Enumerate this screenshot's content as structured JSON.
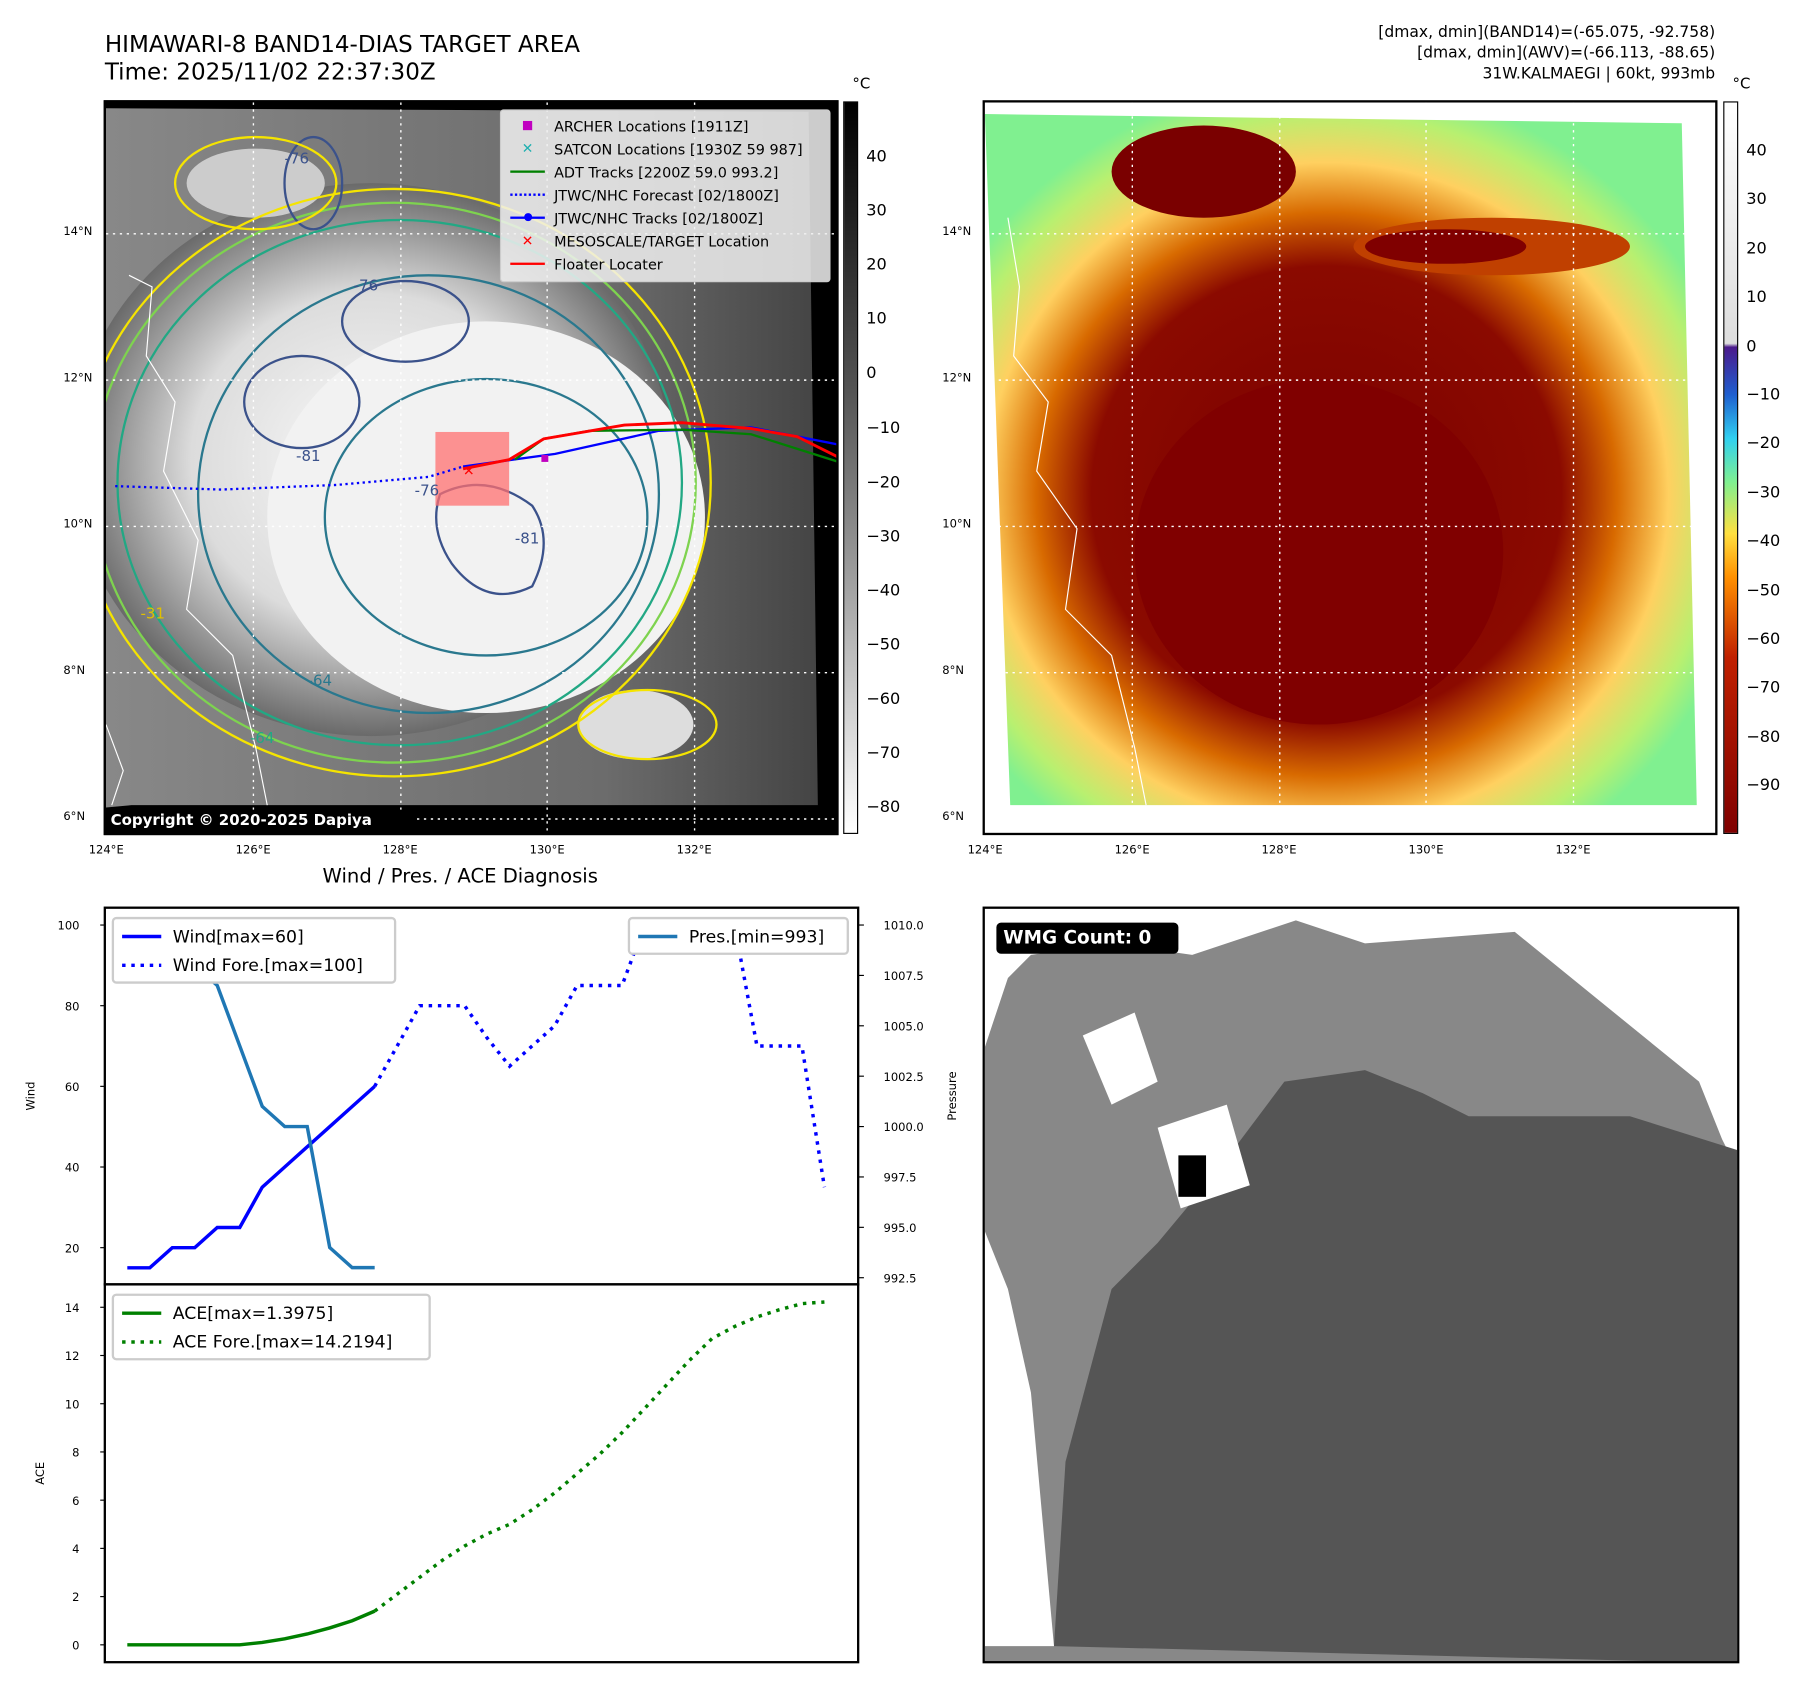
{
  "header": {
    "title": "HIMAWARI-8 BAND14-DIAS TARGET AREA",
    "time": "Time: 2025/11/02 22:37:30Z",
    "info": [
      "[dmax, dmin](BAND14)=(-65.075, -92.758)",
      "[dmax, dmin](AWV)=(-66.113, -88.65)",
      "31W.KALMAEGI | 60kt, 993mb"
    ]
  },
  "map_left": {
    "lon_ticks": [
      "124°E",
      "126°E",
      "128°E",
      "130°E",
      "132°E"
    ],
    "lat_ticks": [
      "14°N",
      "12°N",
      "10°N",
      "8°N",
      "6°N"
    ],
    "copyright": "Copyright © 2020-2025 Dapiya",
    "contour_labels": [
      "-76",
      "-76",
      "-81",
      "-76",
      "-81",
      "-64",
      "-31",
      "-64"
    ],
    "legend": [
      {
        "label": "ARCHER Locations [1911Z]",
        "color": "#c000c0",
        "symbol": "square"
      },
      {
        "label": "SATCON Locations [1930Z 59 987]",
        "color": "#20b0b0",
        "symbol": "x"
      },
      {
        "label": "ADT Tracks [2200Z 59.0 993.2]",
        "color": "#008000",
        "symbol": "line"
      },
      {
        "label": "JTWC/NHC Forecast [02/1800Z]",
        "color": "#0000ff",
        "symbol": "dotted"
      },
      {
        "label": "JTWC/NHC Tracks [02/1800Z]",
        "color": "#0000ff",
        "symbol": "line-dot"
      },
      {
        "label": "MESOSCALE/TARGET Location",
        "color": "#ff0000",
        "symbol": "x"
      },
      {
        "label": "Floater Locater",
        "color": "#ff0000",
        "symbol": "line"
      }
    ],
    "colorbar": {
      "unit": "°C",
      "ticks": [
        "40",
        "30",
        "20",
        "10",
        "0",
        "−10",
        "−20",
        "−30",
        "−40",
        "−50",
        "−60",
        "−70",
        "−80"
      ]
    }
  },
  "map_right": {
    "lon_ticks": [
      "124°E",
      "126°E",
      "128°E",
      "130°E",
      "132°E"
    ],
    "lat_ticks": [
      "14°N",
      "12°N",
      "10°N",
      "8°N",
      "6°N"
    ],
    "colorbar": {
      "unit": "°C",
      "ticks": [
        "40",
        "30",
        "20",
        "10",
        "0",
        "−10",
        "−20",
        "−30",
        "−40",
        "−50",
        "−60",
        "−70",
        "−80",
        "−90"
      ]
    }
  },
  "wmg": {
    "label": "WMG Count: 0"
  },
  "chart_data": [
    {
      "type": "line",
      "title": "Wind / Pres. / ACE Diagnosis",
      "ylabel": "Wind",
      "y2label": "Pressure",
      "ylim": [
        10.9,
        104.3
      ],
      "y2lim": [
        992.17,
        1010.86
      ],
      "xlim": [
        -1,
        32.5
      ],
      "yticks": [
        20,
        40,
        60,
        80,
        100
      ],
      "y2ticks": [
        "992.5",
        "995.0",
        "997.5",
        "1000.0",
        "1002.5",
        "1005.0",
        "1007.5",
        "1010.0"
      ],
      "series": [
        {
          "name": "Wind[max=60]",
          "axis": "left",
          "color": "#0000ff",
          "style": "solid",
          "x": [
            0,
            1,
            2,
            3,
            4,
            5,
            6,
            7,
            8,
            9,
            10,
            11
          ],
          "values": [
            15,
            15,
            20,
            20,
            25,
            25,
            35,
            40,
            45,
            50,
            55,
            60
          ]
        },
        {
          "name": "Wind Fore.[max=100]",
          "axis": "left",
          "color": "#0000ff",
          "style": "dotted",
          "x": [
            11,
            12,
            13,
            14,
            15,
            16,
            17,
            18,
            19,
            20,
            21,
            22,
            23,
            24,
            25,
            26,
            27,
            28,
            29,
            30,
            31
          ],
          "values": [
            60,
            70,
            80,
            80,
            80,
            72,
            65,
            70,
            75,
            85,
            85,
            85,
            100,
            100,
            100,
            100,
            100,
            70,
            70,
            70,
            35
          ]
        },
        {
          "name": "Pres.[min=993]",
          "axis": "right",
          "color": "#1f77b4",
          "style": "solid",
          "x": [
            0,
            1,
            2,
            3,
            4,
            5,
            6,
            7,
            8,
            9,
            10,
            11
          ],
          "values": [
            1010,
            1008,
            1008,
            1008,
            1007,
            1004,
            1001,
            1000,
            1000,
            994,
            993,
            993
          ]
        }
      ]
    },
    {
      "type": "line",
      "ylabel": "ACE",
      "ylim": [
        -0.72,
        14.95
      ],
      "xlim": [
        -1,
        32.5
      ],
      "yticks": [
        0,
        2,
        4,
        6,
        8,
        10,
        12,
        14
      ],
      "series": [
        {
          "name": "ACE[max=1.3975]",
          "color": "#008000",
          "style": "solid",
          "x": [
            0,
            1,
            2,
            3,
            4,
            5,
            6,
            7,
            8,
            9,
            10,
            11
          ],
          "values": [
            0,
            0,
            0,
            0,
            0,
            0,
            0.1,
            0.25,
            0.45,
            0.7,
            1.0,
            1.3975
          ]
        },
        {
          "name": "ACE Fore.[max=14.2194]",
          "color": "#008000",
          "style": "dotted",
          "x": [
            11,
            12,
            13,
            14,
            15,
            16,
            17,
            18,
            19,
            20,
            21,
            22,
            23,
            24,
            25,
            26,
            27,
            28,
            29,
            30,
            31
          ],
          "values": [
            1.3975,
            2.1,
            2.8,
            3.5,
            4.1,
            4.6,
            5.0,
            5.6,
            6.3,
            7.1,
            7.9,
            8.8,
            9.8,
            10.8,
            11.8,
            12.7,
            13.2,
            13.6,
            13.9,
            14.15,
            14.2194
          ]
        }
      ]
    }
  ]
}
